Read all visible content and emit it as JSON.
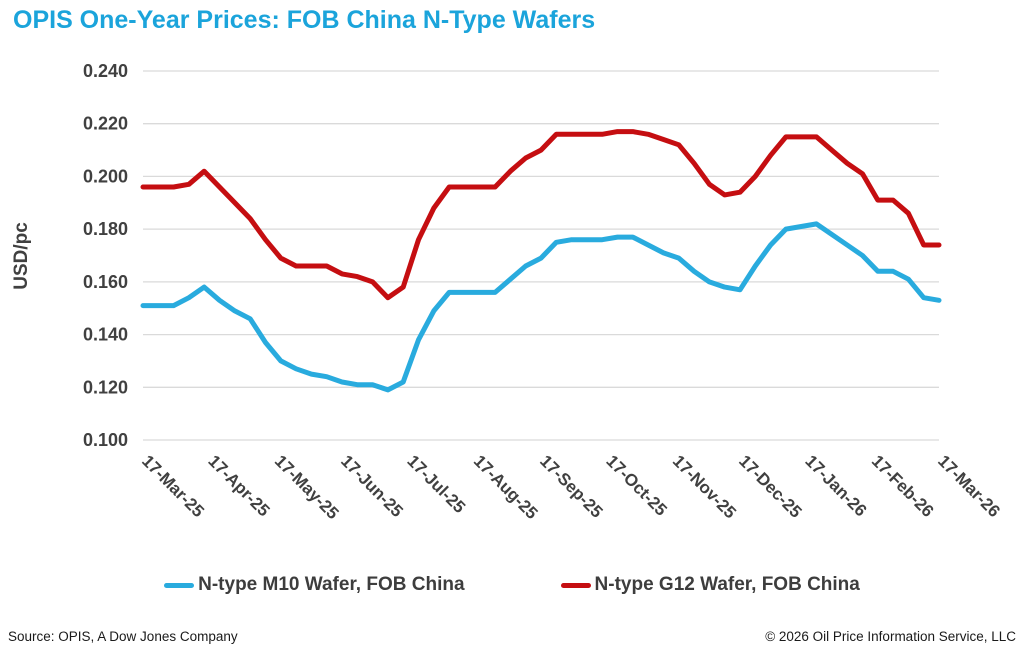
{
  "colors": {
    "title": "#1BA4DB",
    "axis_text": "#404040",
    "gridline": "#DADADA",
    "m10_line": "#29ABDE",
    "g12_line": "#C50E11"
  },
  "chart_data": {
    "type": "line",
    "title": "OPIS One-Year Prices: FOB China N-Type Wafers",
    "ylabel": "USD/pc",
    "ylim": [
      0.1,
      0.24
    ],
    "ytick_step": 0.02,
    "ytick_labels": [
      "0.240",
      "0.220",
      "0.200",
      "0.180",
      "0.160",
      "0.140",
      "0.120",
      "0.100"
    ],
    "xtick_labels": [
      "17-Mar-25",
      "17-Apr-25",
      "17-May-25",
      "17-Jun-25",
      "17-Jul-25",
      "17-Aug-25",
      "17-Sep-25",
      "17-Oct-25",
      "17-Nov-25",
      "17-Dec-25",
      "17-Jan-26",
      "17-Feb-26",
      "17-Mar-26"
    ],
    "grid": "horizontal",
    "legend_position": "bottom",
    "x_frequency": "weekly",
    "series": [
      {
        "name": "N-type M10 Wafer, FOB China",
        "color": "#29ABDE",
        "values": [
          0.151,
          0.151,
          0.151,
          0.154,
          0.158,
          0.153,
          0.149,
          0.146,
          0.137,
          0.13,
          0.127,
          0.125,
          0.124,
          0.122,
          0.121,
          0.121,
          0.119,
          0.122,
          0.138,
          0.149,
          0.156,
          0.156,
          0.156,
          0.156,
          0.161,
          0.166,
          0.169,
          0.175,
          0.176,
          0.176,
          0.176,
          0.177,
          0.177,
          0.174,
          0.171,
          0.169,
          0.164,
          0.16,
          0.158,
          0.157,
          0.166,
          0.174,
          0.18,
          0.181,
          0.182,
          0.178,
          0.174,
          0.17,
          0.164,
          0.164,
          0.161,
          0.154,
          0.153
        ]
      },
      {
        "name": "N-type G12 Wafer, FOB China",
        "color": "#C50E11",
        "values": [
          0.196,
          0.196,
          0.196,
          0.197,
          0.202,
          0.196,
          0.19,
          0.184,
          0.176,
          0.169,
          0.166,
          0.166,
          0.166,
          0.163,
          0.162,
          0.16,
          0.154,
          0.158,
          0.176,
          0.188,
          0.196,
          0.196,
          0.196,
          0.196,
          0.202,
          0.207,
          0.21,
          0.216,
          0.216,
          0.216,
          0.216,
          0.217,
          0.217,
          0.216,
          0.214,
          0.212,
          0.205,
          0.197,
          0.193,
          0.194,
          0.2,
          0.208,
          0.215,
          0.215,
          0.215,
          0.21,
          0.205,
          0.201,
          0.191,
          0.191,
          0.186,
          0.174,
          0.174
        ]
      }
    ]
  },
  "footer": {
    "source": "Source: OPIS, A Dow Jones Company",
    "copyright": "© 2026 Oil Price Information Service, LLC"
  }
}
